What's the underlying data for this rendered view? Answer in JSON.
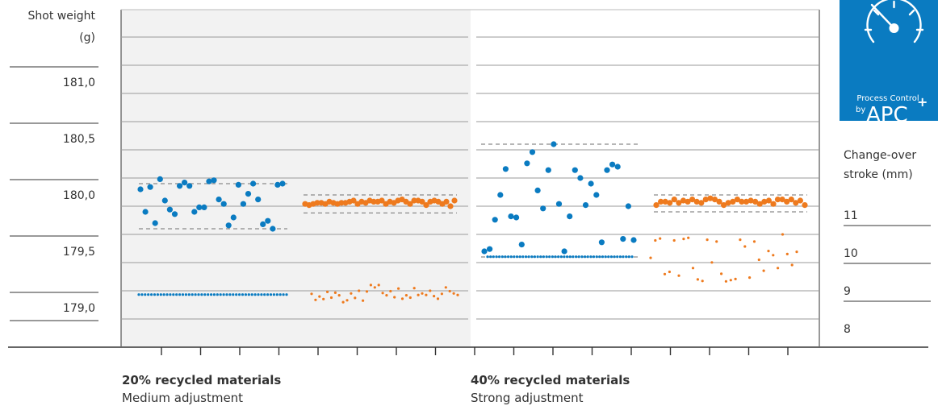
{
  "left_axis": {
    "label_line1": "Shot weight",
    "label_line2": "(g)",
    "ticks": [
      "181,0",
      "180,5",
      "180,0",
      "179,5",
      "179,0"
    ]
  },
  "right_axis": {
    "label_line1": "Change-over",
    "label_line2": "stroke (mm)",
    "ticks": [
      "11",
      "10",
      "9",
      "8"
    ]
  },
  "logo": {
    "line1": "Process Control",
    "by": "by",
    "brand": "APC",
    "sup": "+",
    "icon": "speedometer-icon"
  },
  "sections": [
    {
      "title": "20% recycled materials",
      "subtitle": "Medium adjustment"
    },
    {
      "title": "40% recycled materials",
      "subtitle": "Strong adjustment"
    }
  ],
  "colors": {
    "blue": "#0a7bc1",
    "orange": "#ee7a1e",
    "shade": "#f2f2f2",
    "grid": "#999999",
    "band": "#8a8a8a",
    "logo_bg": "#0a7bc1"
  },
  "chart_data": {
    "type": "scatter",
    "shot_weight_axis": {
      "ticks": [
        181.0,
        180.5,
        180.0,
        179.5,
        179.0
      ]
    },
    "stroke_axis": {
      "ticks": [
        11,
        10,
        9,
        8
      ]
    },
    "series": [
      {
        "section": 0,
        "kind": "shot-weight",
        "color": "blue",
        "size": "large",
        "band": [
          179.7,
          180.1
        ],
        "values": [
          180.05,
          179.85,
          180.07,
          179.75,
          180.14,
          179.95,
          179.87,
          179.83,
          180.08,
          180.11,
          180.08,
          179.85,
          179.89,
          179.89,
          180.12,
          180.13,
          179.96,
          179.92,
          179.73,
          179.8,
          180.09,
          179.92,
          180.01,
          180.1,
          179.96,
          179.74,
          179.77,
          179.7,
          180.09,
          180.1
        ]
      },
      {
        "section": 0,
        "kind": "shot-weight",
        "color": "orange",
        "size": "large",
        "band": [
          179.84,
          180.0
        ],
        "values": [
          179.92,
          179.91,
          179.92,
          179.93,
          179.93,
          179.92,
          179.94,
          179.93,
          179.92,
          179.93,
          179.93,
          179.94,
          179.95,
          179.92,
          179.94,
          179.93,
          179.95,
          179.94,
          179.94,
          179.95,
          179.92,
          179.94,
          179.93,
          179.95,
          179.96,
          179.94,
          179.92,
          179.95,
          179.95,
          179.94,
          179.91,
          179.94,
          179.95,
          179.94,
          179.92,
          179.94,
          179.9,
          179.95
        ]
      },
      {
        "section": 0,
        "kind": "stroke",
        "color": "blue",
        "size": "small",
        "values": [
          8.9,
          8.9,
          8.9,
          8.9,
          8.9,
          8.9,
          8.9,
          8.9,
          8.9,
          8.9,
          8.9,
          8.9,
          8.9,
          8.9,
          8.9,
          8.9,
          8.9,
          8.9,
          8.9,
          8.9,
          8.9,
          8.9,
          8.9,
          8.9,
          8.9,
          8.9,
          8.9,
          8.9,
          8.9,
          8.9,
          8.9,
          8.9,
          8.9,
          8.9,
          8.9,
          8.9,
          8.9,
          8.9,
          8.9,
          8.9,
          8.9,
          8.9,
          8.9,
          8.9,
          8.9,
          8.9,
          8.9,
          8.9
        ]
      },
      {
        "section": 0,
        "kind": "stroke",
        "color": "orange",
        "size": "small",
        "values": [
          8.92,
          8.76,
          8.85,
          8.78,
          8.97,
          8.82,
          8.95,
          8.88,
          8.7,
          8.75,
          8.93,
          8.81,
          9.0,
          8.74,
          8.98,
          9.15,
          9.09,
          9.15,
          8.94,
          8.88,
          8.99,
          8.83,
          9.06,
          8.79,
          8.88,
          8.82,
          9.07,
          8.89,
          8.93,
          8.89,
          9.0,
          8.86,
          8.79,
          8.92,
          9.09,
          8.99,
          8.93,
          8.89
        ]
      },
      {
        "section": 1,
        "kind": "shot-weight",
        "color": "blue",
        "size": "large",
        "band": [
          179.45,
          180.45
        ],
        "values": [
          179.5,
          179.52,
          179.78,
          180.0,
          180.23,
          179.81,
          179.8,
          179.56,
          180.28,
          180.38,
          180.04,
          179.88,
          180.22,
          180.45,
          179.92,
          179.5,
          179.81,
          180.22,
          180.15,
          179.91,
          180.1,
          180.0,
          179.58,
          180.22,
          180.27,
          180.25,
          179.61,
          179.9,
          179.6
        ]
      },
      {
        "section": 1,
        "kind": "shot-weight",
        "color": "orange",
        "size": "large",
        "band": [
          179.85,
          180.0
        ],
        "values": [
          179.91,
          179.94,
          179.94,
          179.93,
          179.96,
          179.93,
          179.95,
          179.94,
          179.96,
          179.94,
          179.93,
          179.96,
          179.97,
          179.96,
          179.94,
          179.91,
          179.93,
          179.94,
          179.96,
          179.94,
          179.94,
          179.95,
          179.94,
          179.92,
          179.94,
          179.95,
          179.92,
          179.96,
          179.96,
          179.94,
          179.96,
          179.93,
          179.95,
          179.91
        ]
      },
      {
        "section": 1,
        "kind": "stroke",
        "color": "blue",
        "size": "small",
        "values": [
          9.9,
          9.9,
          9.9,
          9.9,
          9.9,
          9.9,
          9.9,
          9.9,
          9.9,
          9.9,
          9.9,
          9.9,
          9.9,
          9.9,
          9.9,
          9.9,
          9.9,
          9.9,
          9.9,
          9.9,
          9.9,
          9.9,
          9.9,
          9.9,
          9.9,
          9.9,
          9.9,
          9.9,
          9.9,
          9.9,
          9.9,
          9.9,
          9.9,
          9.9,
          9.9,
          9.9,
          9.9,
          9.9,
          9.9,
          9.9,
          9.9,
          9.9,
          9.9,
          9.9,
          9.9,
          9.9,
          9.9,
          9.9,
          9.9,
          9.9
        ]
      },
      {
        "section": 1,
        "kind": "stroke",
        "color": "orange",
        "size": "small",
        "values": [
          9.87,
          10.33,
          10.38,
          9.44,
          9.5,
          10.33,
          9.4,
          10.37,
          10.4,
          9.6,
          9.3,
          9.26,
          10.35,
          9.75,
          10.3,
          9.45,
          9.25,
          9.28,
          9.31,
          10.35,
          10.17,
          9.35,
          10.3,
          9.82,
          9.53,
          10.05,
          9.94,
          9.6,
          10.49,
          9.97,
          9.68,
          10.03
        ]
      }
    ]
  }
}
